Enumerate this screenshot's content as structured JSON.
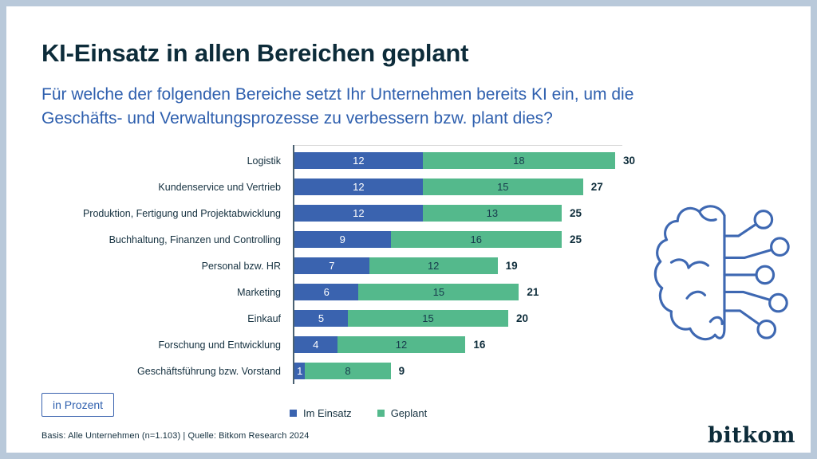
{
  "header": {
    "title": "KI-Einsatz in allen Bereichen geplant",
    "subtitle": "Für welche der folgenden Bereiche setzt Ihr Unternehmen bereits KI ein, um die\nGeschäfts- und Verwaltungsprozesse zu verbessern bzw. plant dies?"
  },
  "chart_data": {
    "type": "bar",
    "orientation": "horizontal",
    "stacked": true,
    "unit_note": "in Prozent",
    "xlim": [
      0,
      30
    ],
    "grid": false,
    "legend_position": "bottom",
    "categories": [
      "Logistik",
      "Kundenservice und Vertrieb",
      "Produktion, Fertigung und Projektabwicklung",
      "Buchhaltung, Finanzen und Controlling",
      "Personal bzw. HR",
      "Marketing",
      "Einkauf",
      "Forschung und Entwicklung",
      "Geschäftsführung bzw. Vorstand"
    ],
    "series": [
      {
        "name": "Im Einsatz",
        "color": "#3a63af",
        "values": [
          12,
          12,
          12,
          9,
          7,
          6,
          5,
          4,
          1
        ]
      },
      {
        "name": "Geplant",
        "color": "#54b98c",
        "values": [
          18,
          15,
          13,
          16,
          12,
          15,
          15,
          12,
          8
        ]
      }
    ],
    "totals": [
      30,
      27,
      25,
      25,
      19,
      21,
      20,
      16,
      9
    ]
  },
  "footer": {
    "source": "Basis: Alle Unternehmen (n=1.103) | Quelle: Bitkom Research 2024",
    "logo_text": "bitkom"
  },
  "colors": {
    "title_text": "#0d2c3a",
    "subtitle_text": "#2e5fae",
    "body_text": "#14303f",
    "accent_blue": "#3a63af",
    "accent_green": "#54b98c",
    "frame_border": "#b9c9da",
    "icon_stroke": "#3e68b2"
  }
}
